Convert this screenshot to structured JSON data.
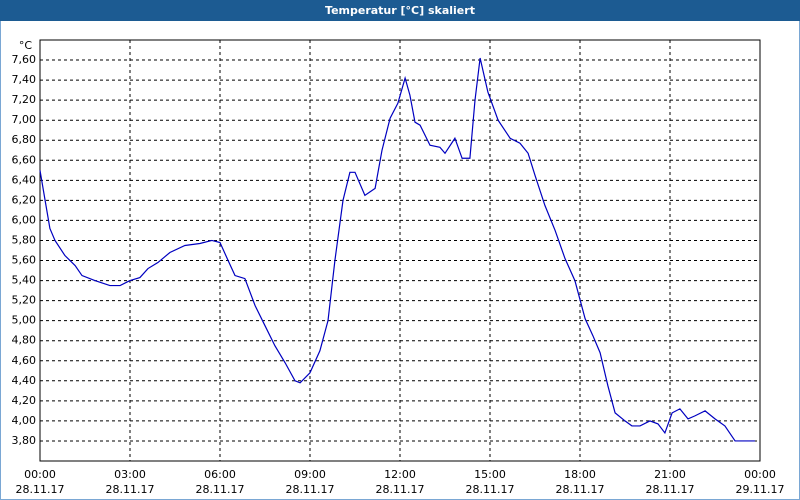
{
  "chart_data": {
    "type": "line",
    "title": "Temperatur [°C] skaliert",
    "y_unit": "°C",
    "xlim": [
      0,
      24
    ],
    "xticks": [
      {
        "value": 0,
        "label": "00:00"
      },
      {
        "value": 3,
        "label": "03:00"
      },
      {
        "value": 6,
        "label": "06:00"
      },
      {
        "value": 9,
        "label": "09:00"
      },
      {
        "value": 12,
        "label": "12:00"
      },
      {
        "value": 15,
        "label": "15:00"
      },
      {
        "value": 18,
        "label": "18:00"
      },
      {
        "value": 21,
        "label": "21:00"
      },
      {
        "value": 24,
        "label": "00:00"
      }
    ],
    "xtick_dates": [
      "28.11.17",
      "28.11.17",
      "28.11.17",
      "28.11.17",
      "28.11.17",
      "28.11.17",
      "28.11.17",
      "28.11.17",
      "29.11.17"
    ],
    "ylim": [
      3.6,
      7.8
    ],
    "yticks": [
      {
        "value": 3.8,
        "label": "3,80"
      },
      {
        "value": 4.0,
        "label": "4,00"
      },
      {
        "value": 4.2,
        "label": "4,20"
      },
      {
        "value": 4.4,
        "label": "4,40"
      },
      {
        "value": 4.6,
        "label": "4,60"
      },
      {
        "value": 4.8,
        "label": "4,80"
      },
      {
        "value": 5.0,
        "label": "5,00"
      },
      {
        "value": 5.2,
        "label": "5,20"
      },
      {
        "value": 5.4,
        "label": "5,40"
      },
      {
        "value": 5.6,
        "label": "5,60"
      },
      {
        "value": 5.8,
        "label": "5,80"
      },
      {
        "value": 6.0,
        "label": "6,00"
      },
      {
        "value": 6.2,
        "label": "6,20"
      },
      {
        "value": 6.4,
        "label": "6,40"
      },
      {
        "value": 6.6,
        "label": "6,60"
      },
      {
        "value": 6.8,
        "label": "6,80"
      },
      {
        "value": 7.0,
        "label": "7,00"
      },
      {
        "value": 7.2,
        "label": "7,20"
      },
      {
        "value": 7.4,
        "label": "7,40"
      },
      {
        "value": 7.6,
        "label": "7,60"
      }
    ],
    "grid": true,
    "color": "#0000c0",
    "x": [
      0,
      0.17,
      0.33,
      0.5,
      0.83,
      1.17,
      1.4,
      1.83,
      2.33,
      2.67,
      3.0,
      3.33,
      3.6,
      3.93,
      4.33,
      4.83,
      5.33,
      5.73,
      6.0,
      6.27,
      6.5,
      6.83,
      7.17,
      7.5,
      7.83,
      8.17,
      8.5,
      8.67,
      9.0,
      9.33,
      9.6,
      9.83,
      10.1,
      10.33,
      10.5,
      10.83,
      11.17,
      11.4,
      11.67,
      11.93,
      12.17,
      12.33,
      12.5,
      12.67,
      13.0,
      13.33,
      13.5,
      13.83,
      14.07,
      14.33,
      14.5,
      14.67,
      14.93,
      15.27,
      15.67,
      16.0,
      16.27,
      16.5,
      16.83,
      17.17,
      17.5,
      17.83,
      18.17,
      18.43,
      18.67,
      18.93,
      19.17,
      19.5,
      19.73,
      20.0,
      20.33,
      20.6,
      20.83,
      21.07,
      21.33,
      21.6,
      21.83,
      22.17,
      22.5,
      22.83,
      23.17,
      23.83
    ],
    "values": [
      6.5,
      6.2,
      5.92,
      5.8,
      5.65,
      5.55,
      5.45,
      5.4,
      5.35,
      5.35,
      5.4,
      5.43,
      5.52,
      5.58,
      5.68,
      5.75,
      5.77,
      5.8,
      5.78,
      5.6,
      5.45,
      5.42,
      5.15,
      4.95,
      4.75,
      4.58,
      4.4,
      4.38,
      4.48,
      4.7,
      5.0,
      5.6,
      6.2,
      6.48,
      6.48,
      6.25,
      6.32,
      6.7,
      7.02,
      7.17,
      7.42,
      7.25,
      6.98,
      6.95,
      6.75,
      6.73,
      6.67,
      6.82,
      6.62,
      6.62,
      7.2,
      7.62,
      7.28,
      7.0,
      6.82,
      6.77,
      6.67,
      6.45,
      6.15,
      5.9,
      5.62,
      5.4,
      5.02,
      4.85,
      4.68,
      4.35,
      4.08,
      4.0,
      3.95,
      3.95,
      4.0,
      3.97,
      3.88,
      4.08,
      4.12,
      4.02,
      4.05,
      4.1,
      4.02,
      3.95,
      3.8,
      3.8
    ]
  }
}
